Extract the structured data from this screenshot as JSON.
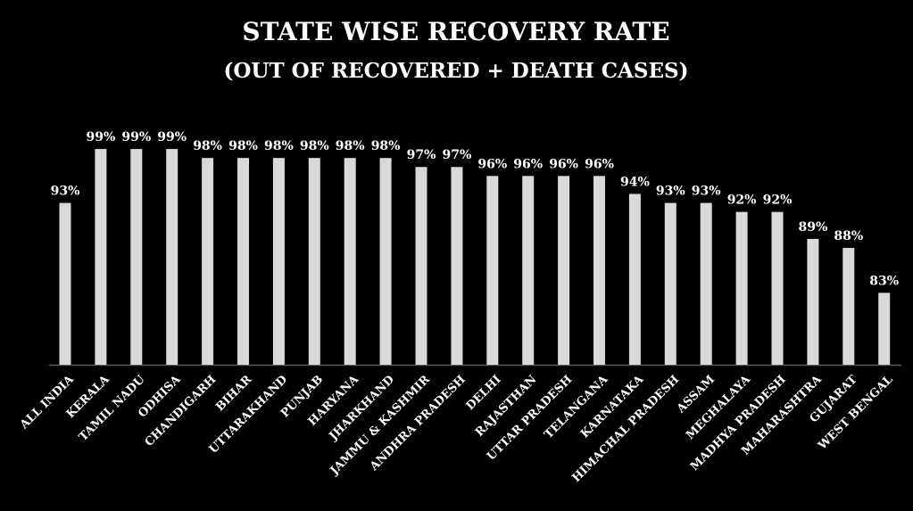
{
  "chart_data": {
    "type": "bar",
    "title": "STATE WISE RECOVERY RATE",
    "subtitle": "(OUT OF RECOVERED + DEATH CASES)",
    "xlabel": "",
    "ylabel": "",
    "ylim": [
      75,
      100
    ],
    "grid": false,
    "legend": "none",
    "bar_color": "#d9d9d9",
    "categories": [
      "ALL INDIA",
      "KERALA",
      "TAMIL NADU",
      "ODHISA",
      "CHANDIGARH",
      "BIHAR",
      "UTTARAKHAND",
      "PUNJAB",
      "HARYANA",
      "JHARKHAND",
      "JAMMU & KASHMIR",
      "ANDHRA PRADESH",
      "DELHI",
      "RAJASTHAN",
      "UTTAR PRADESH",
      "TELANGANA",
      "KARNATAKA",
      "HIMACHAL PRADESH",
      "ASSAM",
      "MEGHALAYA",
      "MADHYA PRADESH",
      "MAHARASHTRA",
      "GUJARAT",
      "WEST BENGAL"
    ],
    "values": [
      93,
      99,
      99,
      99,
      98,
      98,
      98,
      98,
      98,
      98,
      97,
      97,
      96,
      96,
      96,
      96,
      94,
      93,
      93,
      92,
      92,
      89,
      88,
      83
    ],
    "data_labels": [
      "93%",
      "99%",
      "99%",
      "99%",
      "98%",
      "98%",
      "98%",
      "98%",
      "98%",
      "98%",
      "97%",
      "97%",
      "96%",
      "96%",
      "96%",
      "96%",
      "94%",
      "93%",
      "93%",
      "92%",
      "92%",
      "89%",
      "88%",
      "83%"
    ]
  }
}
